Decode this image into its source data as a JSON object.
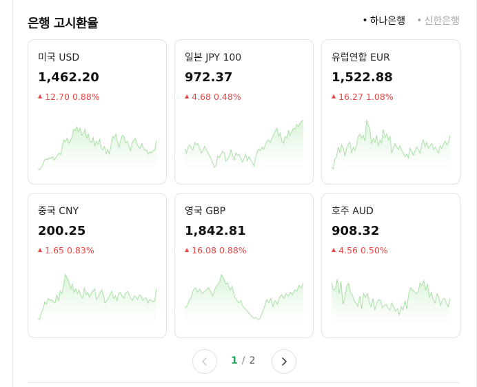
{
  "title": "은행 고시환율",
  "banks": [
    {
      "label": "하나은행",
      "active": true
    },
    {
      "label": "신한은행",
      "active": false
    }
  ],
  "colors": {
    "up": "#e84545",
    "accent": "#19a555",
    "spark_fill": "#d9f3d7",
    "spark_line": "#a9dfa7"
  },
  "cards": [
    {
      "name": "미국 USD",
      "value": "1,462.20",
      "change": "12.70",
      "pct": "0.88%",
      "direction": "up",
      "series": [
        4,
        2,
        5,
        10,
        18,
        20,
        19,
        22,
        21,
        24,
        18,
        22,
        26,
        30,
        27,
        40,
        52,
        49,
        55,
        46,
        50,
        58,
        70,
        68,
        74,
        66,
        72,
        60,
        64,
        70,
        55,
        62,
        50,
        48,
        56,
        42,
        50,
        45,
        53,
        38,
        35,
        41,
        29,
        36,
        28,
        42,
        58,
        55,
        62,
        48,
        40,
        52,
        60,
        58,
        47,
        50,
        43,
        34,
        46,
        52,
        55,
        45,
        40,
        38,
        46,
        38,
        34,
        35,
        28,
        32,
        30,
        34,
        35,
        52
      ]
    },
    {
      "name": "일본 JPY 100",
      "value": "972.37",
      "change": "4.68",
      "pct": "0.48%",
      "direction": "up",
      "series": [
        38,
        30,
        40,
        44,
        38,
        35,
        48,
        44,
        46,
        38,
        30,
        34,
        41,
        35,
        32,
        26,
        20,
        14,
        6,
        8,
        25,
        22,
        28,
        33,
        30,
        16,
        20,
        24,
        36,
        25,
        18,
        30,
        26,
        28,
        21,
        15,
        20,
        28,
        17,
        24,
        18,
        14,
        8,
        22,
        32,
        37,
        34,
        40,
        36,
        45,
        50,
        52,
        48,
        55,
        60,
        68,
        72,
        58,
        64,
        50,
        46,
        58,
        55,
        68,
        60,
        66,
        72,
        70,
        78,
        75,
        80,
        84,
        86
      ]
    },
    {
      "name": "유럽연합 EUR",
      "value": "1,522.88",
      "change": "16.27",
      "pct": "1.08%",
      "direction": "up",
      "series": [
        6,
        3,
        20,
        24,
        40,
        30,
        44,
        38,
        25,
        38,
        45,
        48,
        30,
        40,
        34,
        44,
        58,
        62,
        55,
        60,
        50,
        86,
        78,
        68,
        45,
        55,
        48,
        60,
        42,
        52,
        46,
        70,
        56,
        62,
        52,
        58,
        30,
        38,
        46,
        40,
        36,
        42,
        34,
        30,
        24,
        28,
        22,
        38,
        32,
        26,
        34,
        40,
        36,
        30,
        44,
        52,
        40,
        48,
        38,
        42,
        46,
        36,
        40,
        35,
        30,
        42,
        38,
        45,
        50,
        44,
        48,
        60
      ]
    },
    {
      "name": "중국 CNY",
      "value": "200.25",
      "change": "1.65",
      "pct": "0.83%",
      "direction": "up",
      "series": [
        10,
        8,
        20,
        26,
        38,
        34,
        44,
        40,
        42,
        38,
        36,
        50,
        40,
        56,
        52,
        66,
        84,
        78,
        72,
        60,
        68,
        54,
        60,
        52,
        58,
        48,
        44,
        62,
        50,
        54,
        46,
        52,
        56,
        60,
        42,
        46,
        52,
        58,
        52,
        36,
        40,
        44,
        50,
        56,
        44,
        48,
        40,
        52,
        54,
        48,
        44,
        52,
        56,
        52,
        44,
        40,
        48,
        46,
        42,
        50,
        48,
        40,
        44,
        45,
        36,
        42,
        40,
        38,
        40,
        62
      ]
    },
    {
      "name": "영국 GBP",
      "value": "1,842.81",
      "change": "16.08",
      "pct": "0.88%",
      "direction": "up",
      "series": [
        28,
        30,
        40,
        46,
        58,
        62,
        54,
        60,
        52,
        55,
        58,
        62,
        56,
        48,
        60,
        66,
        70,
        84,
        78,
        68,
        70,
        58,
        64,
        48,
        42,
        36,
        40,
        30,
        26,
        22,
        18,
        14,
        10,
        12,
        8,
        10,
        20,
        30,
        42,
        36,
        44,
        30,
        40,
        34,
        46,
        50,
        44,
        52,
        48,
        54,
        50,
        58,
        56,
        66,
        62,
        70
      ]
    },
    {
      "name": "호주 AUD",
      "value": "908.32",
      "change": "4.56",
      "pct": "0.50%",
      "direction": "up",
      "series": [
        70,
        58,
        60,
        76,
        52,
        72,
        34,
        44,
        64,
        70,
        54,
        50,
        40,
        36,
        30,
        48,
        26,
        52,
        46,
        52,
        38,
        30,
        44,
        24,
        36,
        42,
        40,
        28,
        32,
        34,
        28,
        24,
        36,
        30,
        22,
        26,
        16,
        30,
        24,
        40,
        26,
        52,
        62,
        58,
        56,
        52,
        54,
        70,
        66,
        74,
        58,
        68,
        46,
        54,
        42,
        36,
        52,
        46,
        32,
        42,
        44,
        36,
        30,
        44
      ]
    }
  ],
  "pagination": {
    "current": "1",
    "separator": "/",
    "total": "2"
  }
}
